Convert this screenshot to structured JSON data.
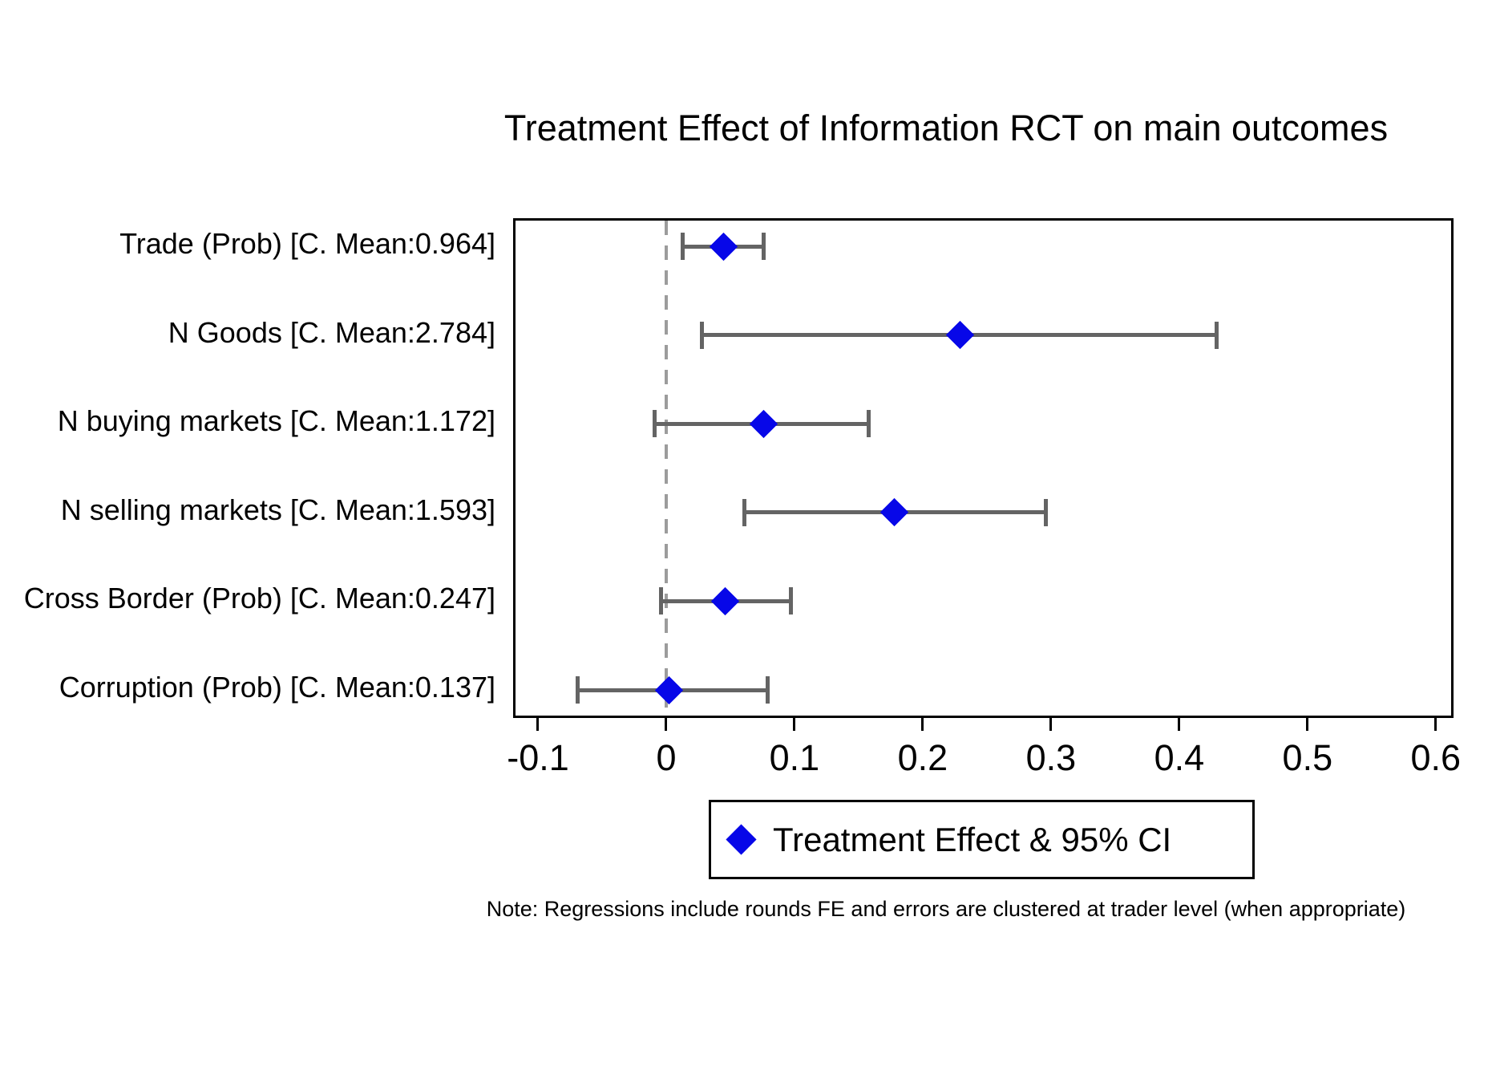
{
  "chart_data": {
    "type": "scatter",
    "subtype": "forest-plot-horizontal-ci",
    "title": "Treatment Effect of Information RCT on main outcomes",
    "note": "Note: Regressions include rounds FE and errors are clustered at trader level (when appropriate)",
    "legend": {
      "label": "Treatment Effect & 95% CI",
      "marker": "diamond-icon",
      "position": "below-plot-center-right"
    },
    "rows": [
      {
        "label": "Trade (Prob) [C. Mean:0.964]",
        "estimate": 0.045,
        "ci_low": 0.013,
        "ci_high": 0.076
      },
      {
        "label": "N Goods [C. Mean:2.784]",
        "estimate": 0.229,
        "ci_low": 0.028,
        "ci_high": 0.429
      },
      {
        "label": "N buying markets [C. Mean:1.172]",
        "estimate": 0.076,
        "ci_low": -0.009,
        "ci_high": 0.158
      },
      {
        "label": "N selling markets [C. Mean:1.593]",
        "estimate": 0.178,
        "ci_low": 0.061,
        "ci_high": 0.296
      },
      {
        "label": "Cross Border (Prob) [C. Mean:0.247]",
        "estimate": 0.046,
        "ci_low": -0.004,
        "ci_high": 0.097
      },
      {
        "label": "Corruption (Prob) [C. Mean:0.137]",
        "estimate": 0.002,
        "ci_low": -0.069,
        "ci_high": 0.079
      }
    ],
    "x_axis": {
      "xlim": [
        -0.1175,
        0.612
      ],
      "ticks": [
        -0.1,
        0,
        0.1,
        0.2,
        0.3,
        0.4,
        0.5,
        0.6
      ],
      "tick_labels": [
        "-0.1",
        "0",
        "0.1",
        "0.2",
        "0.3",
        "0.4",
        "0.5",
        "0.6"
      ]
    },
    "zero_line_at": 0,
    "grid": false,
    "colors": {
      "marker": "#0707e8",
      "ci": "#646464",
      "zero_line": "#9c9c9c",
      "frame": "#000000",
      "background": "#ffffff"
    }
  }
}
